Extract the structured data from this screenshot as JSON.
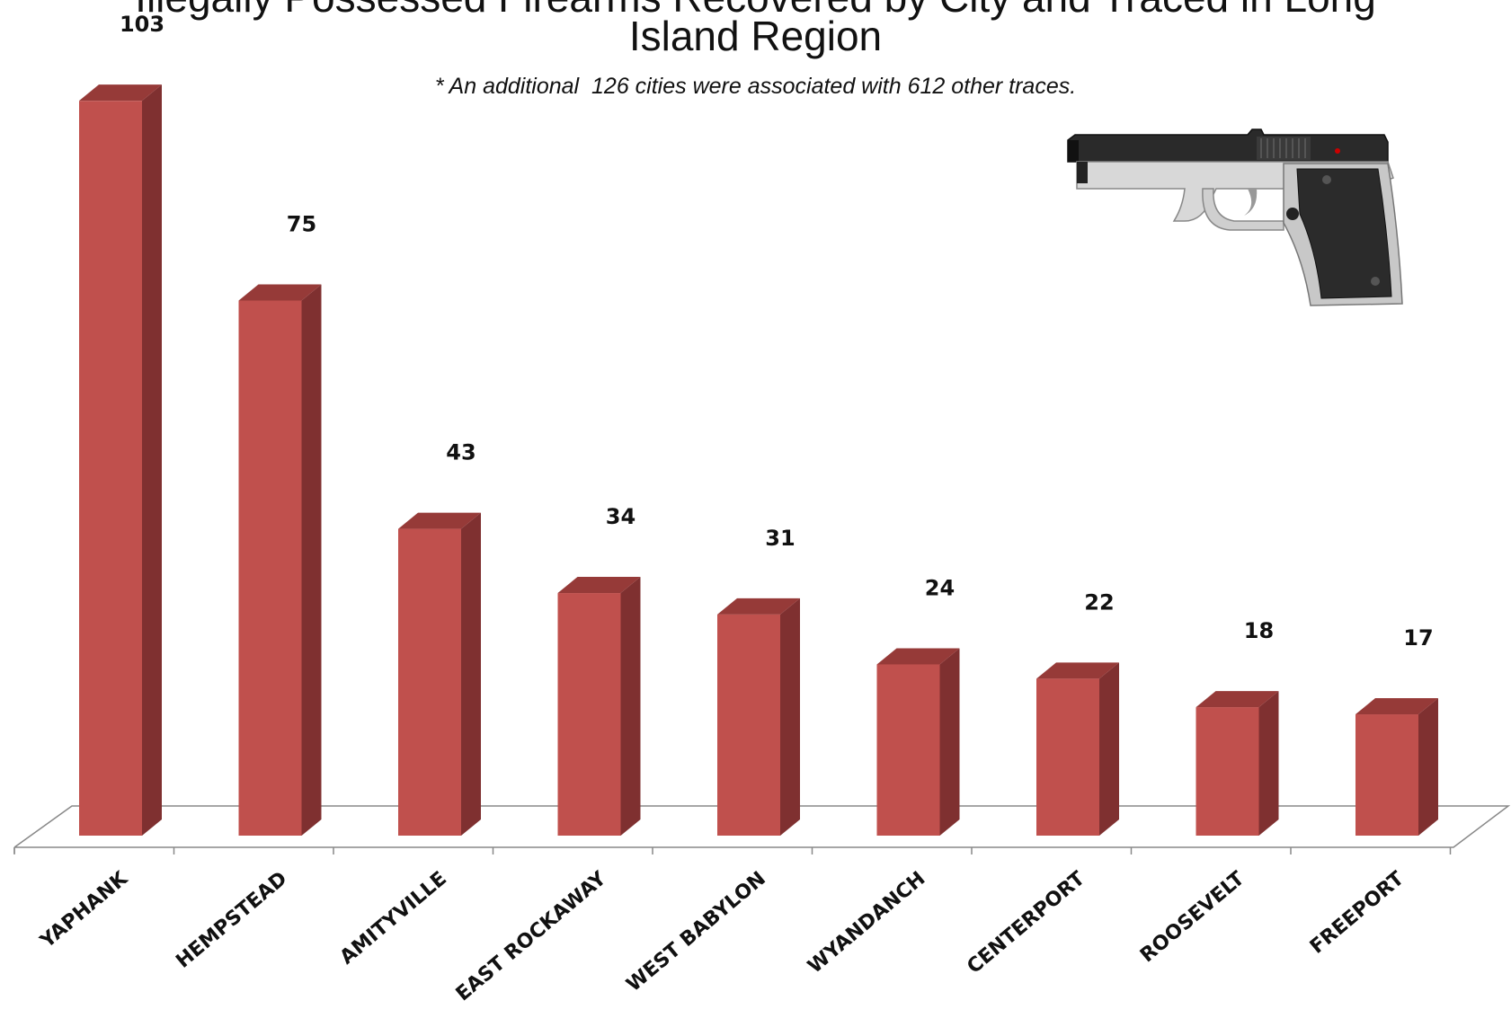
{
  "title_line1": "Illegally Possessed Firearms Recovered by City and Traced in Long",
  "title_line2": "Island Region",
  "subtitle": "* An additional  126 cities were associated with 612 other traces.",
  "colors": {
    "bar_front": "#c0504d",
    "bar_side": "#7f3030",
    "bar_top": "#963a38",
    "floor_stroke": "#888888"
  },
  "chart_data": {
    "type": "bar",
    "categories": [
      "YAPHANK",
      "HEMPSTEAD",
      "AMITYVILLE",
      "EAST ROCKAWAY",
      "WEST BABYLON",
      "WYANDANCH",
      "CENTERPORT",
      "ROOSEVELT",
      "FREEPORT"
    ],
    "values": [
      103,
      75,
      43,
      34,
      31,
      24,
      22,
      18,
      17
    ],
    "title": "Illegally Possessed Firearms Recovered by City and Traced in Long Island Region",
    "xlabel": "",
    "ylabel": "",
    "ylim": [
      0,
      110
    ],
    "grid": false,
    "legend": "none",
    "style": "3d-column"
  },
  "image": {
    "name": "pistol-illustration"
  }
}
